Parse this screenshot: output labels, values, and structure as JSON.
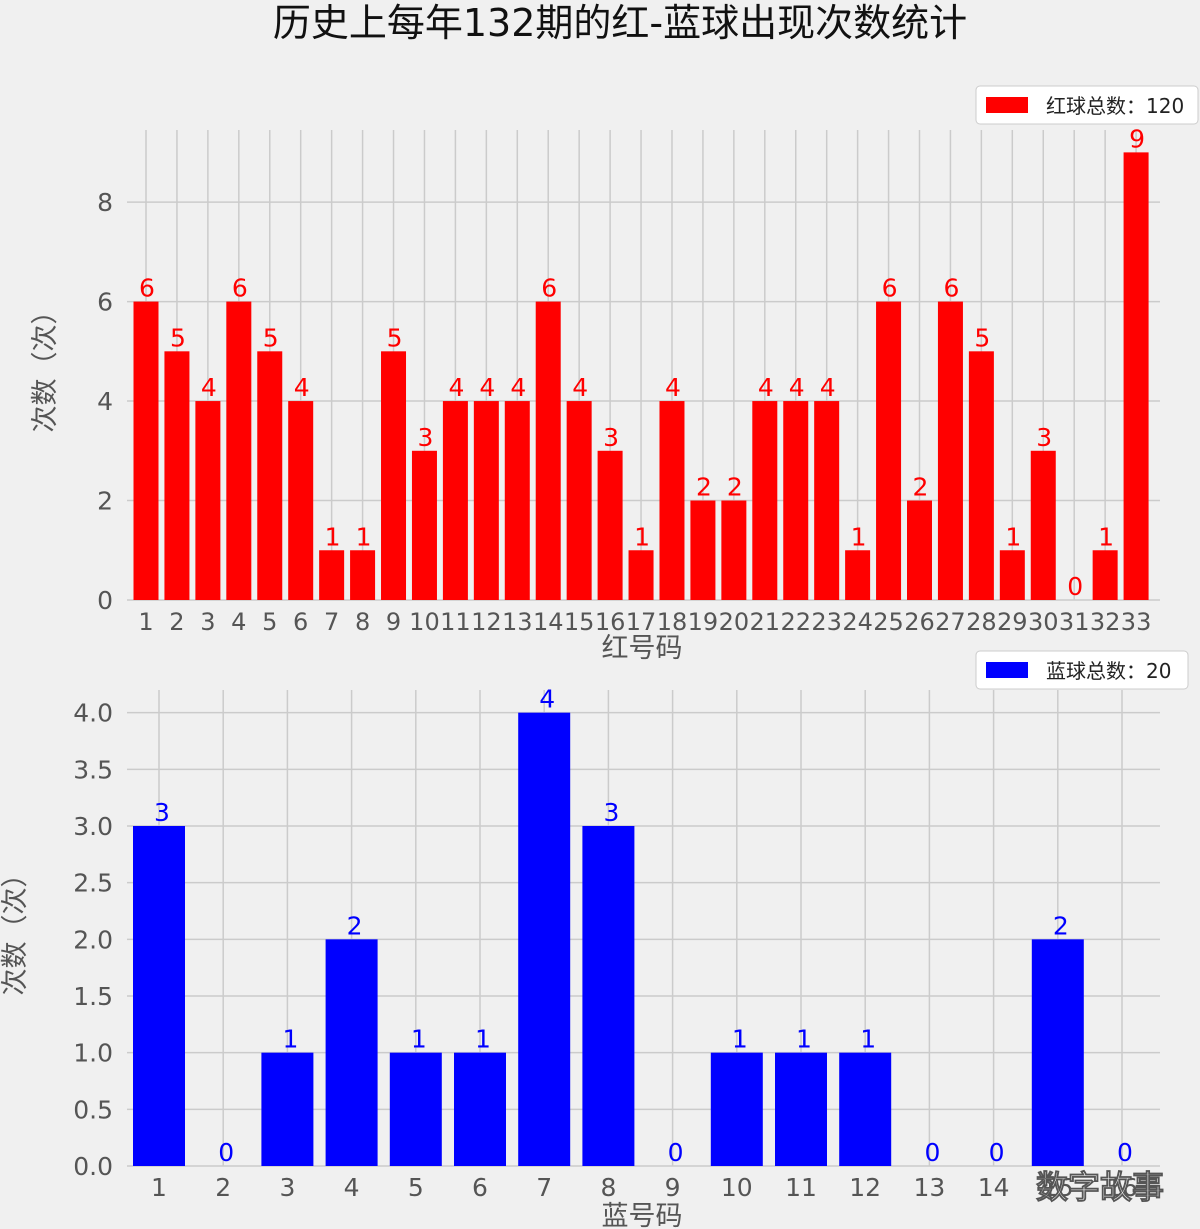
{
  "title": "历史上每年132期的红-蓝球出现次数统计",
  "watermark": "数字故事",
  "chart_data": [
    {
      "type": "bar",
      "xlabel": "红号码",
      "ylabel": "次数（次）",
      "legend": "红球总数：120",
      "legend_position": "top-right",
      "color": "#ff0000",
      "grid": true,
      "ylim": [
        0,
        9.45
      ],
      "yticks": [
        "0",
        "2",
        "4",
        "6",
        "8"
      ],
      "categories": [
        "1",
        "2",
        "3",
        "4",
        "5",
        "6",
        "7",
        "8",
        "9",
        "10",
        "11",
        "12",
        "13",
        "14",
        "15",
        "16",
        "17",
        "18",
        "19",
        "20",
        "21",
        "22",
        "23",
        "24",
        "25",
        "26",
        "27",
        "28",
        "29",
        "30",
        "31",
        "32",
        "33"
      ],
      "values": [
        6,
        5,
        4,
        6,
        5,
        4,
        1,
        1,
        5,
        3,
        4,
        4,
        4,
        6,
        4,
        3,
        1,
        4,
        2,
        2,
        4,
        4,
        4,
        1,
        6,
        2,
        6,
        5,
        1,
        3,
        0,
        1,
        9
      ]
    },
    {
      "type": "bar",
      "xlabel": "蓝号码",
      "ylabel": "次数（次）",
      "legend": "蓝球总数：20",
      "legend_position": "top-right",
      "color": "#0000ff",
      "grid": true,
      "ylim": [
        0,
        4.2
      ],
      "yticks": [
        "0.0",
        "0.5",
        "1.0",
        "1.5",
        "2.0",
        "2.5",
        "3.0",
        "3.5",
        "4.0"
      ],
      "categories": [
        "1",
        "2",
        "3",
        "4",
        "5",
        "6",
        "7",
        "8",
        "9",
        "10",
        "11",
        "12",
        "13",
        "14",
        "15",
        "16"
      ],
      "values": [
        3,
        0,
        1,
        2,
        1,
        1,
        4,
        3,
        0,
        1,
        1,
        1,
        0,
        0,
        2,
        0
      ]
    }
  ]
}
